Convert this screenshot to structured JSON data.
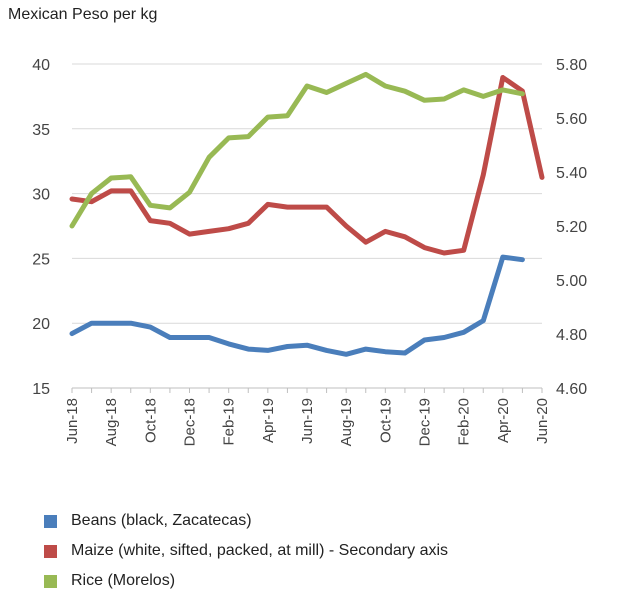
{
  "chart_data": {
    "type": "line",
    "unit_label": "Mexican Peso per kg",
    "title": "",
    "x": [
      "Jun-18",
      "Jul-18",
      "Aug-18",
      "Sep-18",
      "Oct-18",
      "Nov-18",
      "Dec-18",
      "Jan-19",
      "Feb-19",
      "Mar-19",
      "Apr-19",
      "May-19",
      "Jun-19",
      "Jul-19",
      "Aug-19",
      "Sep-19",
      "Oct-19",
      "Nov-19",
      "Dec-19",
      "Jan-20",
      "Feb-20",
      "Mar-20",
      "Apr-20",
      "May-20",
      "Jun-20"
    ],
    "x_tick_labels": [
      "Jun-18",
      "Aug-18",
      "Oct-18",
      "Dec-18",
      "Feb-19",
      "Apr-19",
      "Jun-19",
      "Aug-19",
      "Oct-19",
      "Dec-19",
      "Feb-20",
      "Apr-20",
      "Jun-20"
    ],
    "y_left": {
      "min": 15,
      "max": 40,
      "ticks": [
        "15",
        "20",
        "25",
        "30",
        "35",
        "40"
      ]
    },
    "y_right": {
      "min": 4.6,
      "max": 5.8,
      "ticks": [
        "4.60",
        "4.80",
        "5.00",
        "5.20",
        "5.40",
        "5.60",
        "5.80"
      ]
    },
    "grid": "horizontal",
    "legend_position": "bottom",
    "series": [
      {
        "name": "Beans (black, Zacatecas)",
        "axis": "left",
        "color": "#4a7ebb",
        "values": [
          19.2,
          20.0,
          20.0,
          20.0,
          19.7,
          18.9,
          18.9,
          18.9,
          18.4,
          18.0,
          17.9,
          18.2,
          18.3,
          17.9,
          17.6,
          18.0,
          17.8,
          17.7,
          18.7,
          18.9,
          19.3,
          20.2,
          25.1,
          24.9,
          null
        ]
      },
      {
        "name": "Maize (white, sifted, packed, at mill) - Secondary axis",
        "axis": "right",
        "color": "#be4b48",
        "values": [
          5.3,
          5.29,
          5.33,
          5.33,
          5.22,
          5.21,
          5.17,
          5.18,
          5.19,
          5.21,
          5.28,
          5.27,
          5.27,
          5.27,
          5.2,
          5.14,
          5.18,
          5.16,
          5.12,
          5.1,
          5.11,
          5.39,
          5.75,
          5.7,
          5.38
        ]
      },
      {
        "name": "Rice (Morelos)",
        "axis": "left",
        "color": "#98b954",
        "values": [
          27.5,
          30.0,
          31.2,
          31.3,
          29.1,
          28.9,
          30.1,
          32.8,
          34.3,
          34.4,
          35.9,
          36.0,
          38.3,
          37.8,
          38.5,
          39.2,
          38.3,
          37.9,
          37.2,
          37.3,
          38.0,
          37.5,
          38.0,
          37.7,
          null
        ]
      }
    ]
  }
}
